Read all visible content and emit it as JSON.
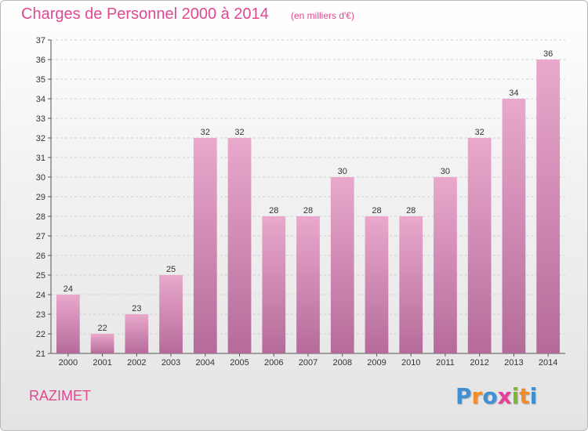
{
  "title": "Charges de Personnel 2000 à 2014",
  "subtitle": "(en milliers d'€)",
  "commune": "RAZIMET",
  "logo": {
    "text": "Proxiti",
    "letters": [
      {
        "char": "P",
        "color": "#3f8fd4"
      },
      {
        "char": "r",
        "color": "#f28c28"
      },
      {
        "char": "o",
        "color": "#3f8fd4"
      },
      {
        "char": "x",
        "color": "#e8409a"
      },
      {
        "char": "i",
        "color": "#7ab82e"
      },
      {
        "char": "t",
        "color": "#f28c28"
      },
      {
        "char": "i",
        "color": "#3f8fd4"
      }
    ]
  },
  "colors": {
    "accent": "#e0488f",
    "bar_top": "#e9a8cc",
    "bar_bottom": "#b56b9a",
    "grid": "#d0d0d0"
  },
  "chart_data": {
    "type": "bar",
    "title": "Charges de Personnel 2000 à 2014",
    "subtitle": "(en milliers d'€)",
    "categories": [
      "2000",
      "2001",
      "2002",
      "2003",
      "2004",
      "2005",
      "2006",
      "2007",
      "2008",
      "2009",
      "2010",
      "2011",
      "2012",
      "2013",
      "2014"
    ],
    "values": [
      24,
      22,
      23,
      25,
      32,
      32,
      28,
      28,
      30,
      28,
      28,
      30,
      32,
      34,
      36
    ],
    "xlabel": "",
    "ylabel": "",
    "ylim": [
      21,
      37
    ],
    "yticks": [
      21,
      22,
      23,
      24,
      25,
      26,
      27,
      28,
      29,
      30,
      31,
      32,
      33,
      34,
      35,
      36,
      37
    ],
    "grid": true,
    "data_labels": true
  }
}
